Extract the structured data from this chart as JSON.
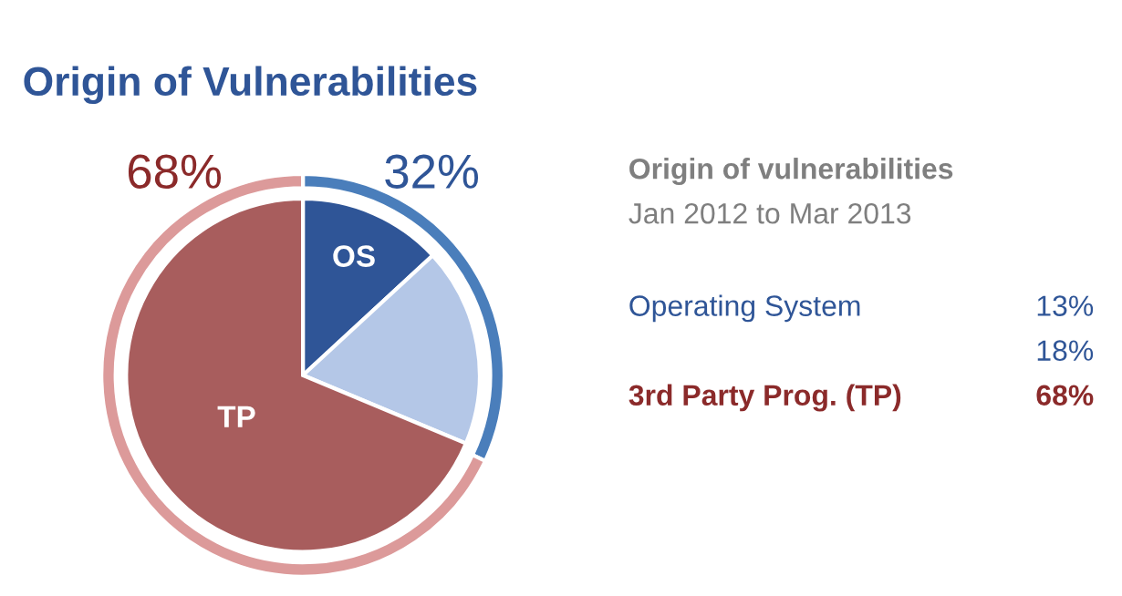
{
  "chart_data": [
    {
      "type": "pie",
      "title": "Origin of Vulnerabilities",
      "categories": [
        "OS",
        null,
        "TP"
      ],
      "series": [
        {
          "values": [
            13,
            18,
            68
          ],
          "colors": [
            "#2f5597",
            "#b4c7e7",
            "#a85d5d"
          ]
        },
        {
          "type": "donut",
          "values": [
            32,
            null,
            68
          ],
          "colors": [
            "#4a7ebb",
            null,
            "#dc9a9a"
          ],
          "value_labels": [
            "32%",
            null,
            "68%"
          ]
        }
      ]
    },
    {
      "type": "other",
      "subtitle": "Origin of vulnerabilities",
      "annotations": [
        "Jan 2012 to Mar 2013",
        "Operating System",
        "13%",
        "18%",
        "3rd Party Prog. (TP)",
        "68%"
      ]
    }
  ]
}
